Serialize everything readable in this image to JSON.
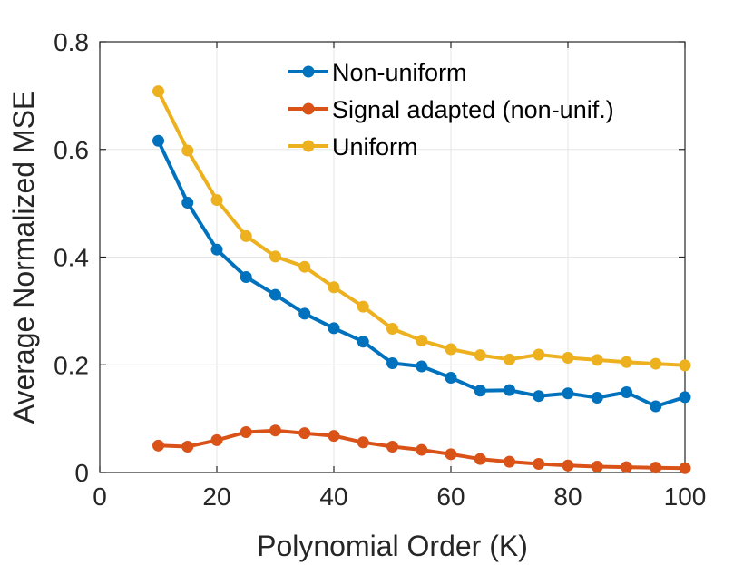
{
  "chart_data": {
    "type": "line",
    "title": "",
    "xlabel": "Polynomial Order (K)",
    "ylabel": "Average Normalized MSE",
    "xlim": [
      0,
      100
    ],
    "ylim": [
      0,
      0.8
    ],
    "xticks": [
      0,
      20,
      40,
      60,
      80,
      100
    ],
    "xtick_labels": [
      "0",
      "20",
      "40",
      "60",
      "80",
      "100"
    ],
    "yticks": [
      0,
      0.2,
      0.4,
      0.6,
      0.8
    ],
    "ytick_labels": [
      "0",
      "0.2",
      "0.4",
      "0.6",
      "0.8"
    ],
    "grid": true,
    "legend_position": "top-right",
    "x": [
      10,
      15,
      20,
      25,
      30,
      35,
      40,
      45,
      50,
      55,
      60,
      65,
      70,
      75,
      80,
      85,
      90,
      95,
      100
    ],
    "series": [
      {
        "name": "Non-uniform",
        "color": "#0072BD",
        "values": [
          0.616,
          0.501,
          0.414,
          0.363,
          0.33,
          0.295,
          0.268,
          0.243,
          0.203,
          0.197,
          0.176,
          0.152,
          0.153,
          0.142,
          0.147,
          0.139,
          0.149,
          0.123,
          0.14
        ]
      },
      {
        "name": "Signal adapted (non-unif.)",
        "color": "#D95319",
        "values": [
          0.05,
          0.048,
          0.06,
          0.075,
          0.078,
          0.073,
          0.068,
          0.056,
          0.048,
          0.042,
          0.034,
          0.025,
          0.02,
          0.016,
          0.013,
          0.011,
          0.01,
          0.009,
          0.008
        ]
      },
      {
        "name": "Uniform",
        "color": "#EDB120",
        "values": [
          0.708,
          0.598,
          0.506,
          0.439,
          0.401,
          0.382,
          0.344,
          0.308,
          0.267,
          0.245,
          0.229,
          0.218,
          0.21,
          0.219,
          0.213,
          0.209,
          0.205,
          0.202,
          0.199
        ]
      }
    ]
  }
}
